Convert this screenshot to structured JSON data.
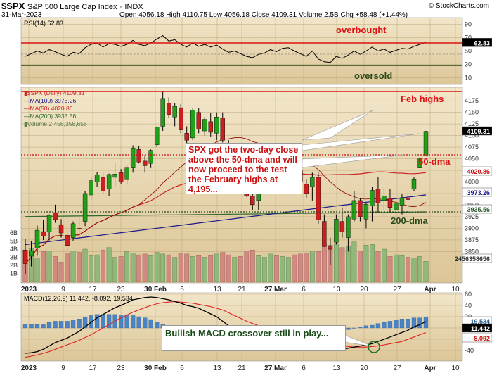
{
  "header": {
    "symbol": "$SPX",
    "name": "S&P 500 Large Cap Index",
    "exchange": "INDX",
    "date": "31-Mar-2023",
    "ohlc": "Open 4056.18  High 4110.75  Low 4056.18  Close 4109.31  Volume 2.5B  Chg +58.48 (+1.44%)",
    "watermark": "© StockCharts.com"
  },
  "colors": {
    "panel_bg": "#e6d6b3",
    "price_up": "#22a01a",
    "price_down": "#cc1e1e",
    "ma20": "#8b0000",
    "ma50": "#cc2222",
    "ma100": "#1a1a8c",
    "ma200": "#2e6b2e",
    "macd_line": "#000000",
    "signal_line": "#dd2222",
    "hist": "#4a84c4",
    "callout_bg": "#ffffff",
    "callout_text": "#cc1111"
  },
  "rsi_panel": {
    "label": "RSI(14) 62.83",
    "value_badge": "62.83",
    "overbought_label": "overbought",
    "oversold_label": "oversold",
    "ticks": [
      "90",
      "70",
      "50",
      "30",
      "10"
    ]
  },
  "price_panel": {
    "legend": [
      "▮$SPX (Daily) 4109.31",
      "—MA(100) 3973.26",
      "—MA(50) 4020.86",
      "—MA(200) 3935.56",
      "▮Volume 2,456,358,656"
    ],
    "feb_highs_label": "Feb highs",
    "ma50_label": "50-dma",
    "ma200_label": "200-dma",
    "badges": [
      "4109.31",
      "4020.86",
      "3973.26",
      "3935.56",
      "2456358656"
    ],
    "vol_ticks": [
      "6B",
      "5B",
      "4B",
      "3B",
      "2B",
      "1B"
    ],
    "callout": "SPX got the two-day close above the 50-dma and will now proceed to the test the February highs at 4,195..."
  },
  "macd_panel": {
    "label": "MACD(12,26,9) 11.442, -8.092, 19.534",
    "badges": [
      "19.534",
      "11.442",
      "-8.092"
    ],
    "ticks": [
      "60",
      "40",
      "20",
      "0",
      "-20",
      "-40"
    ],
    "callout": "Bullish MACD crossover still in play..."
  },
  "xaxis": {
    "labels": [
      "2023",
      "9",
      "17",
      "23",
      "30 Feb",
      "6",
      "13",
      "21",
      "27 Mar",
      "6",
      "13",
      "20",
      "27",
      "Apr",
      "10"
    ]
  },
  "chart_data": {
    "type": "candlestick",
    "title": "$SPX S&P 500 Large Cap Index",
    "price_ylim": [
      3800,
      4200
    ],
    "price_ticks": [
      4175,
      4150,
      4125,
      4100,
      4075,
      4050,
      4025,
      4000,
      3975,
      3950,
      3925,
      3900,
      3875,
      3850
    ],
    "reference_levels": {
      "feb_highs": 4195,
      "ma50": 4020.86,
      "ma200": 3935.56
    },
    "candles_ohlc": [
      [
        3853,
        3878,
        3802,
        3824
      ],
      [
        3840,
        3872,
        3818,
        3852
      ],
      [
        3858,
        3906,
        3841,
        3896
      ],
      [
        3893,
        3918,
        3875,
        3883
      ],
      [
        3892,
        3930,
        3874,
        3928
      ],
      [
        3934,
        3951,
        3912,
        3919
      ],
      [
        3908,
        3920,
        3880,
        3890
      ],
      [
        3885,
        3895,
        3852,
        3863
      ],
      [
        3880,
        3915,
        3873,
        3910
      ],
      [
        3900,
        3930,
        3880,
        3898
      ],
      [
        3915,
        3980,
        3905,
        3975
      ],
      [
        3972,
        4012,
        3962,
        4003
      ],
      [
        4000,
        4022,
        3990,
        4015
      ],
      [
        4010,
        4020,
        3975,
        3980
      ],
      [
        3985,
        4018,
        3970,
        4016
      ],
      [
        4010,
        4042,
        3990,
        4017
      ],
      [
        4020,
        4028,
        3995,
        4000
      ],
      [
        4005,
        4035,
        3995,
        4030
      ],
      [
        4030,
        4079,
        4020,
        4072
      ],
      [
        4070,
        4078,
        4040,
        4043
      ],
      [
        4045,
        4058,
        4020,
        4035
      ],
      [
        4040,
        4070,
        4030,
        4068
      ],
      [
        4080,
        4120,
        4075,
        4118
      ],
      [
        4120,
        4195,
        4110,
        4180
      ],
      [
        4170,
        4182,
        4138,
        4145
      ],
      [
        4140,
        4170,
        4120,
        4163
      ],
      [
        4160,
        4168,
        4105,
        4112
      ],
      [
        4105,
        4120,
        4083,
        4090
      ],
      [
        4095,
        4160,
        4090,
        4155
      ],
      [
        4150,
        4159,
        4105,
        4114
      ],
      [
        4110,
        4140,
        4100,
        4135
      ],
      [
        4130,
        4148,
        4098,
        4107
      ],
      [
        4105,
        4150,
        4090,
        4140
      ],
      [
        4138,
        4150,
        4085,
        4090
      ],
      [
        4080,
        4090,
        4040,
        4048
      ],
      [
        4050,
        4075,
        4040,
        4060
      ],
      [
        4060,
        4078,
        4010,
        4012
      ],
      [
        4010,
        4020,
        3968,
        3970
      ],
      [
        3970,
        3990,
        3940,
        3951
      ],
      [
        3960,
        3985,
        3940,
        3980
      ],
      [
        3981,
        4010,
        3975,
        3990
      ],
      [
        3995,
        4025,
        3990,
        4020
      ],
      [
        4018,
        4040,
        3998,
        4000
      ],
      [
        4005,
        4050,
        3985,
        4045
      ],
      [
        4045,
        4070,
        4025,
        4050
      ],
      [
        4048,
        4075,
        4020,
        4030
      ],
      [
        4025,
        4035,
        3990,
        4000
      ],
      [
        3995,
        4005,
        3965,
        3975
      ],
      [
        3990,
        4020,
        3960,
        4010
      ],
      [
        4010,
        4020,
        3910,
        3918
      ],
      [
        3915,
        3930,
        3860,
        3861
      ],
      [
        3860,
        3880,
        3820,
        3855
      ],
      [
        3870,
        3930,
        3865,
        3920
      ],
      [
        3915,
        3945,
        3880,
        3892
      ],
      [
        3880,
        3930,
        3850,
        3925
      ],
      [
        3920,
        3980,
        3915,
        3960
      ],
      [
        3960,
        3965,
        3915,
        3925
      ],
      [
        3920,
        3955,
        3900,
        3952
      ],
      [
        3948,
        3990,
        3915,
        3982
      ],
      [
        3985,
        4010,
        3935,
        3955
      ],
      [
        3960,
        3990,
        3925,
        3970
      ],
      [
        3965,
        3985,
        3935,
        3945
      ],
      [
        3940,
        3960,
        3910,
        3955
      ],
      [
        3950,
        3975,
        3930,
        3966
      ],
      [
        3965,
        3978,
        3960,
        3962
      ],
      [
        3985,
        4010,
        3980,
        4005
      ],
      [
        4030,
        4055,
        4025,
        4050
      ],
      [
        4056,
        4110,
        4056,
        4109
      ]
    ],
    "volume_B": [
      3.9,
      4.1,
      2.9,
      3.7,
      3.8,
      3.1,
      2.4,
      3.5,
      3.8,
      3.6,
      4.0,
      3.2,
      3.3,
      3.9,
      4.2,
      3.0,
      3.1,
      3.7,
      3.5,
      3.3,
      3.4,
      3.2,
      3.6,
      3.4,
      3.3,
      3.0,
      3.5,
      3.4,
      3.1,
      3.2,
      3.0,
      3.2,
      3.4,
      3.6,
      3.3,
      3.0,
      3.1,
      3.8,
      3.9,
      3.2,
      3.0,
      3.4,
      3.2,
      3.1,
      3.0,
      3.3,
      3.4,
      3.5,
      3.8,
      3.7,
      4.6,
      4.5,
      4.7,
      4.2,
      4.4,
      4.9,
      3.8,
      4.5,
      4.6,
      3.7,
      4.0,
      3.1,
      3.3,
      3.2,
      3.0,
      2.9,
      3.1,
      2.5
    ],
    "rsi": [
      42,
      46,
      50,
      47,
      52,
      49,
      45,
      42,
      48,
      46,
      55,
      60,
      62,
      56,
      61,
      60,
      57,
      60,
      66,
      60,
      58,
      62,
      68,
      73,
      65,
      67,
      60,
      56,
      62,
      57,
      60,
      56,
      59,
      53,
      48,
      50,
      46,
      42,
      40,
      45,
      47,
      52,
      49,
      54,
      55,
      50,
      46,
      42,
      50,
      38,
      34,
      33,
      42,
      39,
      44,
      50,
      45,
      50,
      56,
      50,
      53,
      48,
      51,
      54,
      53,
      57,
      60,
      63
    ],
    "macd": [
      -45,
      -44,
      -42,
      -38,
      -32,
      -26,
      -22,
      -18,
      -12,
      -6,
      2,
      10,
      18,
      24,
      30,
      36,
      40,
      45,
      50,
      52,
      54,
      55,
      54,
      52,
      50,
      47,
      44,
      40,
      38,
      35,
      30,
      25,
      20,
      12,
      4,
      -2,
      -10,
      -16,
      -20,
      -24,
      -27,
      -30,
      -32,
      -34,
      -36,
      -38,
      -36,
      -34,
      -34,
      -36,
      -38,
      -40,
      -40,
      -38,
      -36,
      -34,
      -32,
      -30,
      -28,
      -24,
      -20,
      -16,
      -12,
      -8,
      -4,
      2,
      6,
      11.442
    ],
    "signal": [
      -52,
      -50,
      -48,
      -45,
      -42,
      -38,
      -34,
      -30,
      -26,
      -22,
      -17,
      -12,
      -6,
      0,
      6,
      12,
      18,
      23,
      28,
      32,
      36,
      40,
      43,
      45,
      46,
      47,
      46,
      45,
      44,
      42,
      40,
      38,
      35,
      32,
      27,
      22,
      17,
      12,
      8,
      4,
      0,
      -4,
      -8,
      -12,
      -16,
      -20,
      -22,
      -24,
      -26,
      -28,
      -29,
      -30,
      -31,
      -32,
      -33,
      -34,
      -34,
      -34,
      -33,
      -32,
      -30,
      -28,
      -26,
      -24,
      -20,
      -16,
      -12,
      -8.092
    ]
  }
}
